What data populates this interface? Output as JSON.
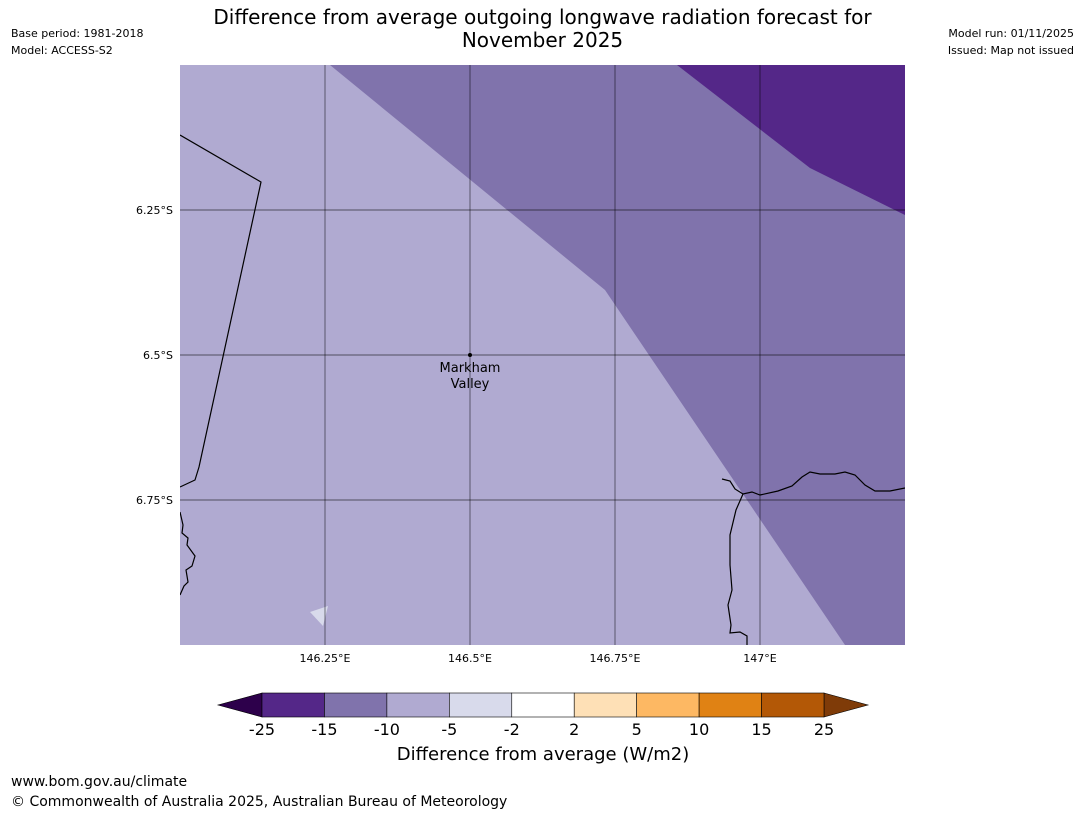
{
  "header": {
    "base_period": "Base period: 1981-2018",
    "model": "Model: ACCESS-S2",
    "model_run": "Model run: 01/11/2025",
    "issued": "Issued: Map not issued",
    "title_line1": "Difference from average outgoing longwave radiation forecast for",
    "title_line2": "November 2025"
  },
  "map": {
    "lat_ticks": [
      "6.25°S",
      "6.5°S",
      "6.75°S"
    ],
    "lon_ticks": [
      "146.25°E",
      "146.5°E",
      "146.75°E",
      "147°E"
    ],
    "place": {
      "name_line1": "Markham",
      "name_line2": "Valley",
      "lon": 146.5,
      "lat": -6.5
    },
    "extent": {
      "lon_min": 146.0,
      "lon_max": 147.25,
      "lat_min": -7.0,
      "lat_max": -6.0
    },
    "fill_categories": [
      {
        "range": "-5 to -10",
        "color": "#b0aad1"
      },
      {
        "range": "-10 to -15",
        "color": "#8073ac"
      },
      {
        "range": "-15 to -25",
        "color": "#542788"
      }
    ]
  },
  "colorbar": {
    "label": "Difference from average (W/m2)",
    "ticks": [
      "-25",
      "-15",
      "-10",
      "-5",
      "-2",
      "2",
      "5",
      "10",
      "15",
      "25"
    ],
    "low_extend_color": "#2d004b",
    "high_extend_color": "#7f3b08",
    "bins": [
      "#542788",
      "#8073ac",
      "#b0aad1",
      "#d8daeb",
      "#ffffff",
      "#fee0b6",
      "#fdb863",
      "#e08214",
      "#b35806"
    ]
  },
  "footer": {
    "url": "www.bom.gov.au/climate",
    "copyright": "© Commonwealth of Australia 2025, Australian Bureau of Meteorology"
  }
}
